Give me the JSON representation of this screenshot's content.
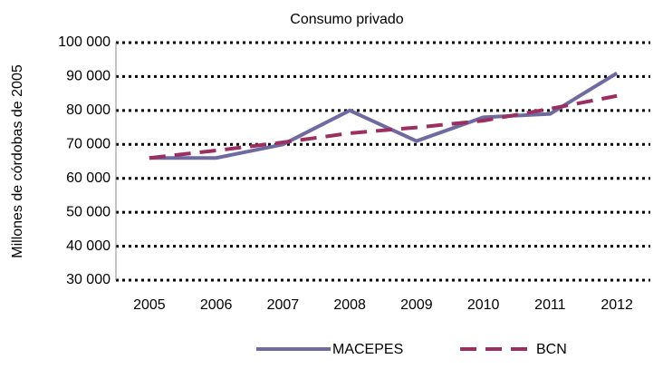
{
  "chart_data": {
    "type": "line",
    "title": "Consumo privado",
    "y_label": "Millones de córdobas de 2005",
    "categories": [
      "2005",
      "2006",
      "2007",
      "2008",
      "2009",
      "2010",
      "2011",
      "2012"
    ],
    "series": [
      {
        "name": "MACEPES",
        "color": "#6f6aa0",
        "dashed": false,
        "values": [
          66000,
          66000,
          70000,
          80000,
          71000,
          78000,
          79000,
          91000
        ]
      },
      {
        "name": "BCN",
        "color": "#9b3060",
        "dashed": true,
        "values": [
          66000,
          68200,
          70600,
          73300,
          75000,
          77000,
          80500,
          84300
        ]
      }
    ],
    "ylim": [
      30000,
      100000
    ],
    "yticks": [
      {
        "value": 30000,
        "label": "30 000"
      },
      {
        "value": 40000,
        "label": "40 000"
      },
      {
        "value": 50000,
        "label": "50 000"
      },
      {
        "value": 60000,
        "label": "60 000"
      },
      {
        "value": 70000,
        "label": "70 000"
      },
      {
        "value": 80000,
        "label": "80 000"
      },
      {
        "value": 90000,
        "label": "90 000"
      },
      {
        "value": 100000,
        "label": "100 000"
      }
    ],
    "grid": true,
    "legend": "bottom"
  }
}
